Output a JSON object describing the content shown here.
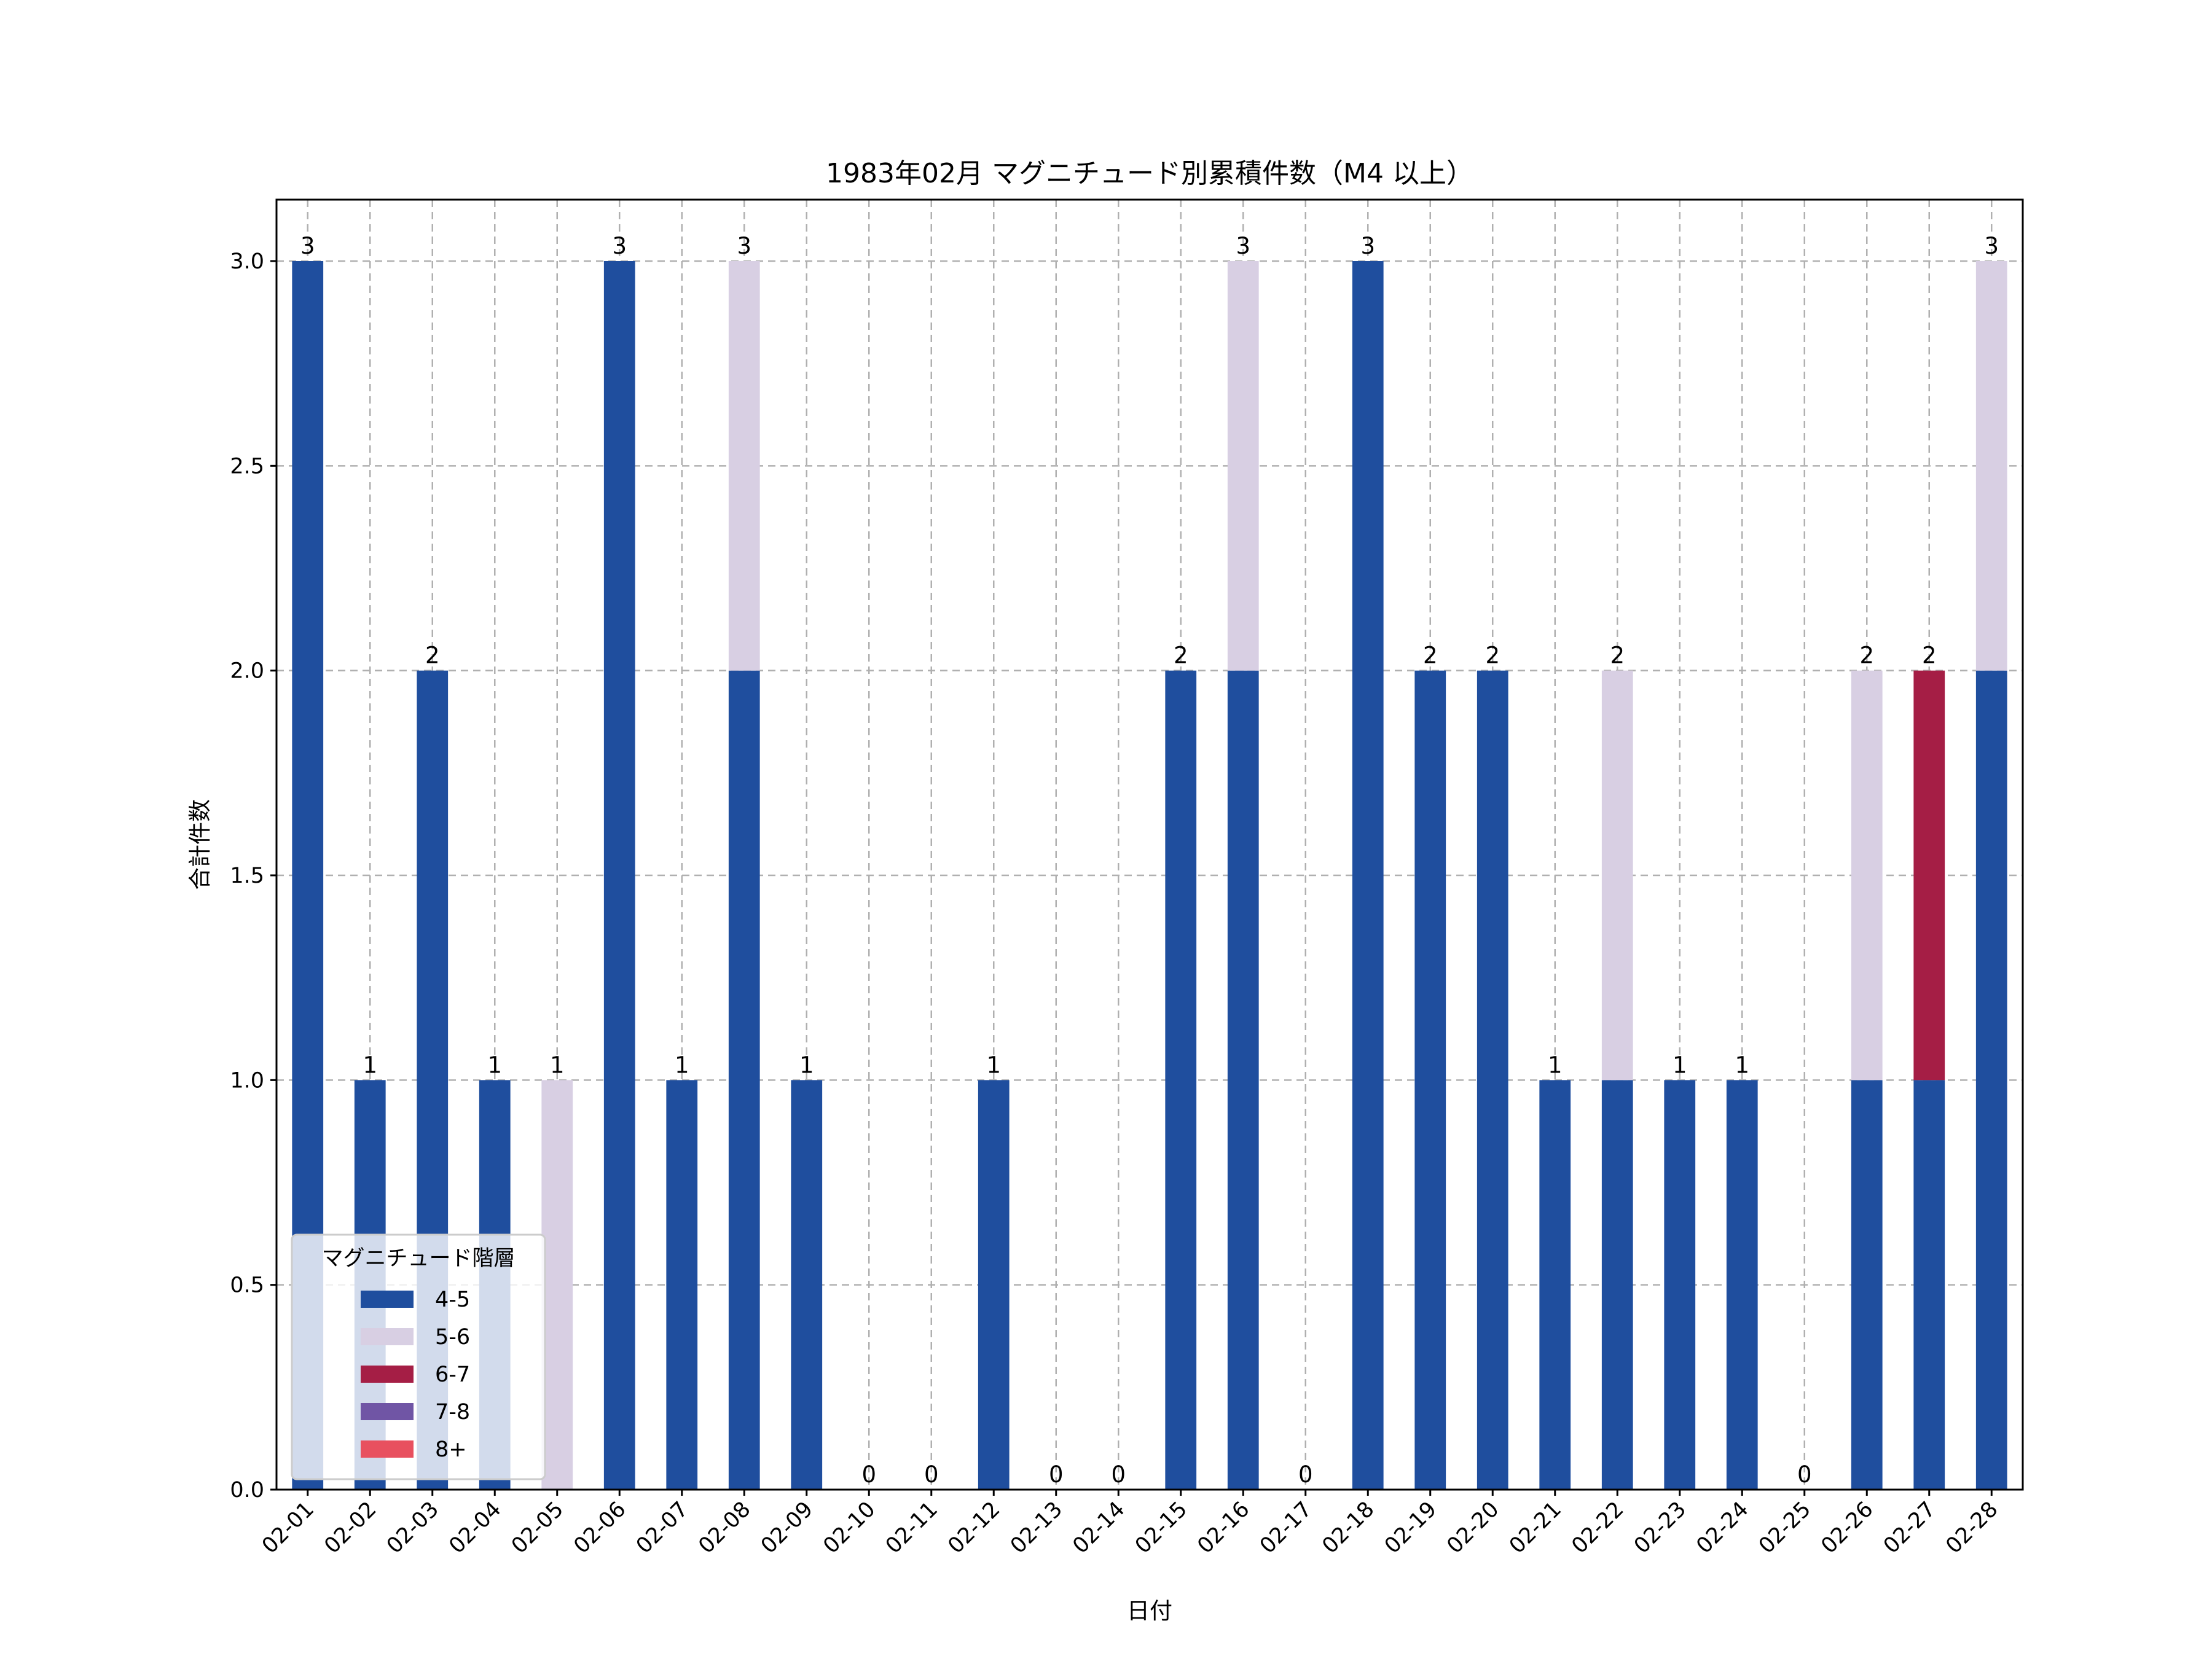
{
  "chart_data": {
    "type": "bar",
    "stacked": true,
    "title": "1983年02月 マグニチュード別累積件数（M4 以上）",
    "xlabel": "日付",
    "ylabel": "合計件数",
    "ylim": [
      0,
      3.15
    ],
    "yticks": [
      "0.0",
      "0.5",
      "1.0",
      "1.5",
      "2.0",
      "2.5",
      "3.0"
    ],
    "grid": true,
    "legend": {
      "title": "マグニチュード階層",
      "placement": "lower-left"
    },
    "categories": [
      "02-01",
      "02-02",
      "02-03",
      "02-04",
      "02-05",
      "02-06",
      "02-07",
      "02-08",
      "02-09",
      "02-10",
      "02-11",
      "02-12",
      "02-13",
      "02-14",
      "02-15",
      "02-16",
      "02-17",
      "02-18",
      "02-19",
      "02-20",
      "02-21",
      "02-22",
      "02-23",
      "02-24",
      "02-25",
      "02-26",
      "02-27",
      "02-28"
    ],
    "series": [
      {
        "name": "4-5",
        "color": "#1f4e9e",
        "values": [
          3,
          1,
          2,
          1,
          0,
          3,
          1,
          2,
          1,
          0,
          0,
          1,
          0,
          0,
          2,
          2,
          0,
          3,
          2,
          2,
          1,
          1,
          1,
          1,
          0,
          1,
          1,
          2
        ]
      },
      {
        "name": "5-6",
        "color": "#d8cfe3",
        "values": [
          0,
          0,
          0,
          0,
          1,
          0,
          0,
          1,
          0,
          0,
          0,
          0,
          0,
          0,
          0,
          1,
          0,
          0,
          0,
          0,
          0,
          1,
          0,
          0,
          0,
          1,
          0,
          1
        ]
      },
      {
        "name": "6-7",
        "color": "#a51e45",
        "values": [
          0,
          0,
          0,
          0,
          0,
          0,
          0,
          0,
          0,
          0,
          0,
          0,
          0,
          0,
          0,
          0,
          0,
          0,
          0,
          0,
          0,
          0,
          0,
          0,
          0,
          0,
          1,
          0
        ]
      },
      {
        "name": "7-8",
        "color": "#7055a5",
        "values": [
          0,
          0,
          0,
          0,
          0,
          0,
          0,
          0,
          0,
          0,
          0,
          0,
          0,
          0,
          0,
          0,
          0,
          0,
          0,
          0,
          0,
          0,
          0,
          0,
          0,
          0,
          0,
          0
        ]
      },
      {
        "name": "8+",
        "color": "#e8505f",
        "values": [
          0,
          0,
          0,
          0,
          0,
          0,
          0,
          0,
          0,
          0,
          0,
          0,
          0,
          0,
          0,
          0,
          0,
          0,
          0,
          0,
          0,
          0,
          0,
          0,
          0,
          0,
          0,
          0
        ]
      }
    ],
    "totals": [
      3,
      1,
      2,
      1,
      1,
      3,
      1,
      3,
      1,
      0,
      0,
      1,
      0,
      0,
      2,
      3,
      0,
      3,
      2,
      2,
      1,
      2,
      1,
      1,
      0,
      2,
      2,
      3
    ]
  }
}
